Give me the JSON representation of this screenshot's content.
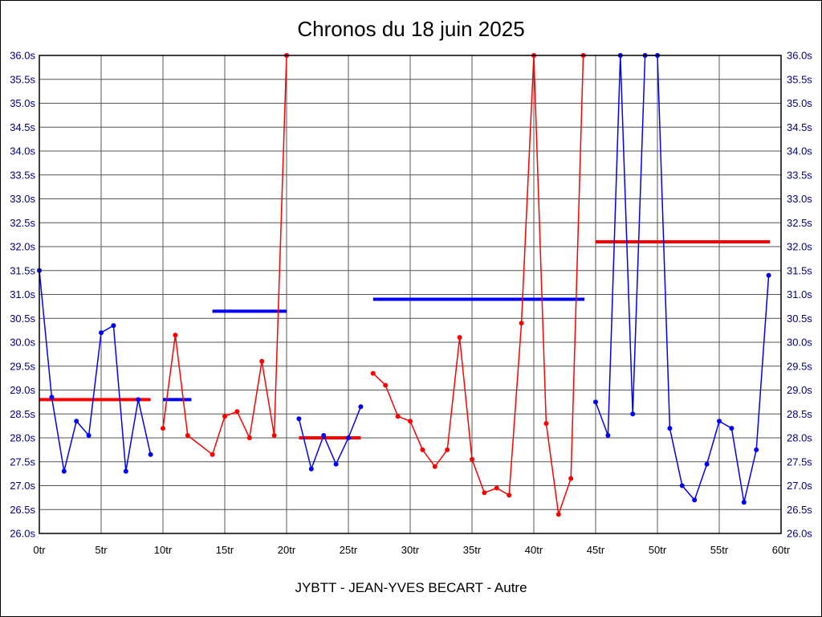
{
  "chart_data": {
    "type": "line",
    "title": "Chronos du 18 juin 2025",
    "footer": "JYBTT - JEAN-YVES BECART - Autre",
    "x_min": 0,
    "x_max": 60,
    "x_tick_interval": 5,
    "x_unit": "tr",
    "y_min": 26.0,
    "y_max": 36.0,
    "y_tick_interval": 0.5,
    "y_unit": "s",
    "x_tick_labels": [
      "0tr",
      "5tr",
      "10tr",
      "15tr",
      "20tr",
      "25tr",
      "30tr",
      "35tr",
      "40tr",
      "45tr",
      "50tr",
      "55tr",
      "60tr"
    ],
    "y_tick_labels": [
      "26.0s",
      "26.5s",
      "27.0s",
      "27.5s",
      "28.0s",
      "28.5s",
      "29.0s",
      "29.5s",
      "30.0s",
      "30.5s",
      "31.0s",
      "31.5s",
      "32.0s",
      "32.5s",
      "33.0s",
      "33.5s",
      "34.0s",
      "34.5s",
      "35.0s",
      "35.5s",
      "36.0s"
    ],
    "grid": true,
    "grid_color": "#555555",
    "border_color": "#000000",
    "y_label_color": "#000080",
    "x_label_color": "#000000",
    "legend_position": "none",
    "colors": {
      "blue": "#0000ff",
      "red": "#ff0000"
    },
    "series": [
      {
        "name": "segment-1",
        "color": "blue",
        "points": [
          [
            0,
            31.5
          ],
          [
            1,
            28.85
          ],
          [
            2,
            27.3
          ],
          [
            3,
            28.35
          ],
          [
            4,
            28.05
          ],
          [
            5,
            30.2
          ],
          [
            6,
            30.35
          ],
          [
            7,
            27.3
          ],
          [
            8,
            28.8
          ],
          [
            9,
            27.65
          ]
        ]
      },
      {
        "name": "segment-2",
        "color": "red",
        "points": [
          [
            10,
            28.2
          ],
          [
            11,
            30.15
          ],
          [
            12,
            28.05
          ],
          [
            14,
            27.65
          ],
          [
            15,
            28.45
          ],
          [
            16,
            28.55
          ],
          [
            17,
            28.0
          ],
          [
            18,
            29.6
          ],
          [
            19,
            28.05
          ],
          [
            20,
            36.0
          ]
        ]
      },
      {
        "name": "segment-3",
        "color": "blue",
        "points": [
          [
            21,
            28.4
          ],
          [
            22,
            27.35
          ],
          [
            23,
            28.05
          ],
          [
            24,
            27.45
          ],
          [
            25,
            28.0
          ],
          [
            26,
            28.65
          ]
        ]
      },
      {
        "name": "segment-4",
        "color": "red",
        "points": [
          [
            27,
            29.35
          ],
          [
            28,
            29.1
          ],
          [
            29,
            28.45
          ],
          [
            30,
            28.35
          ],
          [
            31,
            27.75
          ],
          [
            32,
            27.4
          ],
          [
            33,
            27.75
          ],
          [
            34,
            30.1
          ],
          [
            35,
            27.55
          ],
          [
            36,
            26.85
          ],
          [
            37,
            26.95
          ],
          [
            38,
            26.8
          ],
          [
            39,
            30.4
          ],
          [
            40,
            36.0
          ],
          [
            41,
            28.3
          ],
          [
            42,
            26.4
          ],
          [
            43,
            27.15
          ],
          [
            44,
            36.0
          ]
        ]
      },
      {
        "name": "segment-5",
        "color": "blue",
        "points": [
          [
            45,
            28.75
          ],
          [
            46,
            28.05
          ],
          [
            47,
            36.0
          ],
          [
            48,
            28.5
          ],
          [
            49,
            36.0
          ],
          [
            50,
            36.0
          ],
          [
            51,
            28.2
          ],
          [
            52,
            27.0
          ],
          [
            53,
            26.7
          ],
          [
            54,
            27.45
          ],
          [
            55,
            28.35
          ],
          [
            56,
            28.2
          ],
          [
            57,
            26.65
          ],
          [
            58,
            27.75
          ],
          [
            59,
            31.4
          ]
        ]
      }
    ],
    "average_lines": [
      {
        "color": "red",
        "from": 0,
        "to": 9,
        "value": 28.8
      },
      {
        "color": "blue",
        "from": 10,
        "to": 12.3,
        "value": 28.8
      },
      {
        "color": "blue",
        "from": 14,
        "to": 20,
        "value": 30.65
      },
      {
        "color": "red",
        "from": 21,
        "to": 26,
        "value": 28.0
      },
      {
        "color": "blue",
        "from": 27,
        "to": 44.1,
        "value": 30.9
      },
      {
        "color": "red",
        "from": 45,
        "to": 59.1,
        "value": 32.1
      }
    ]
  }
}
